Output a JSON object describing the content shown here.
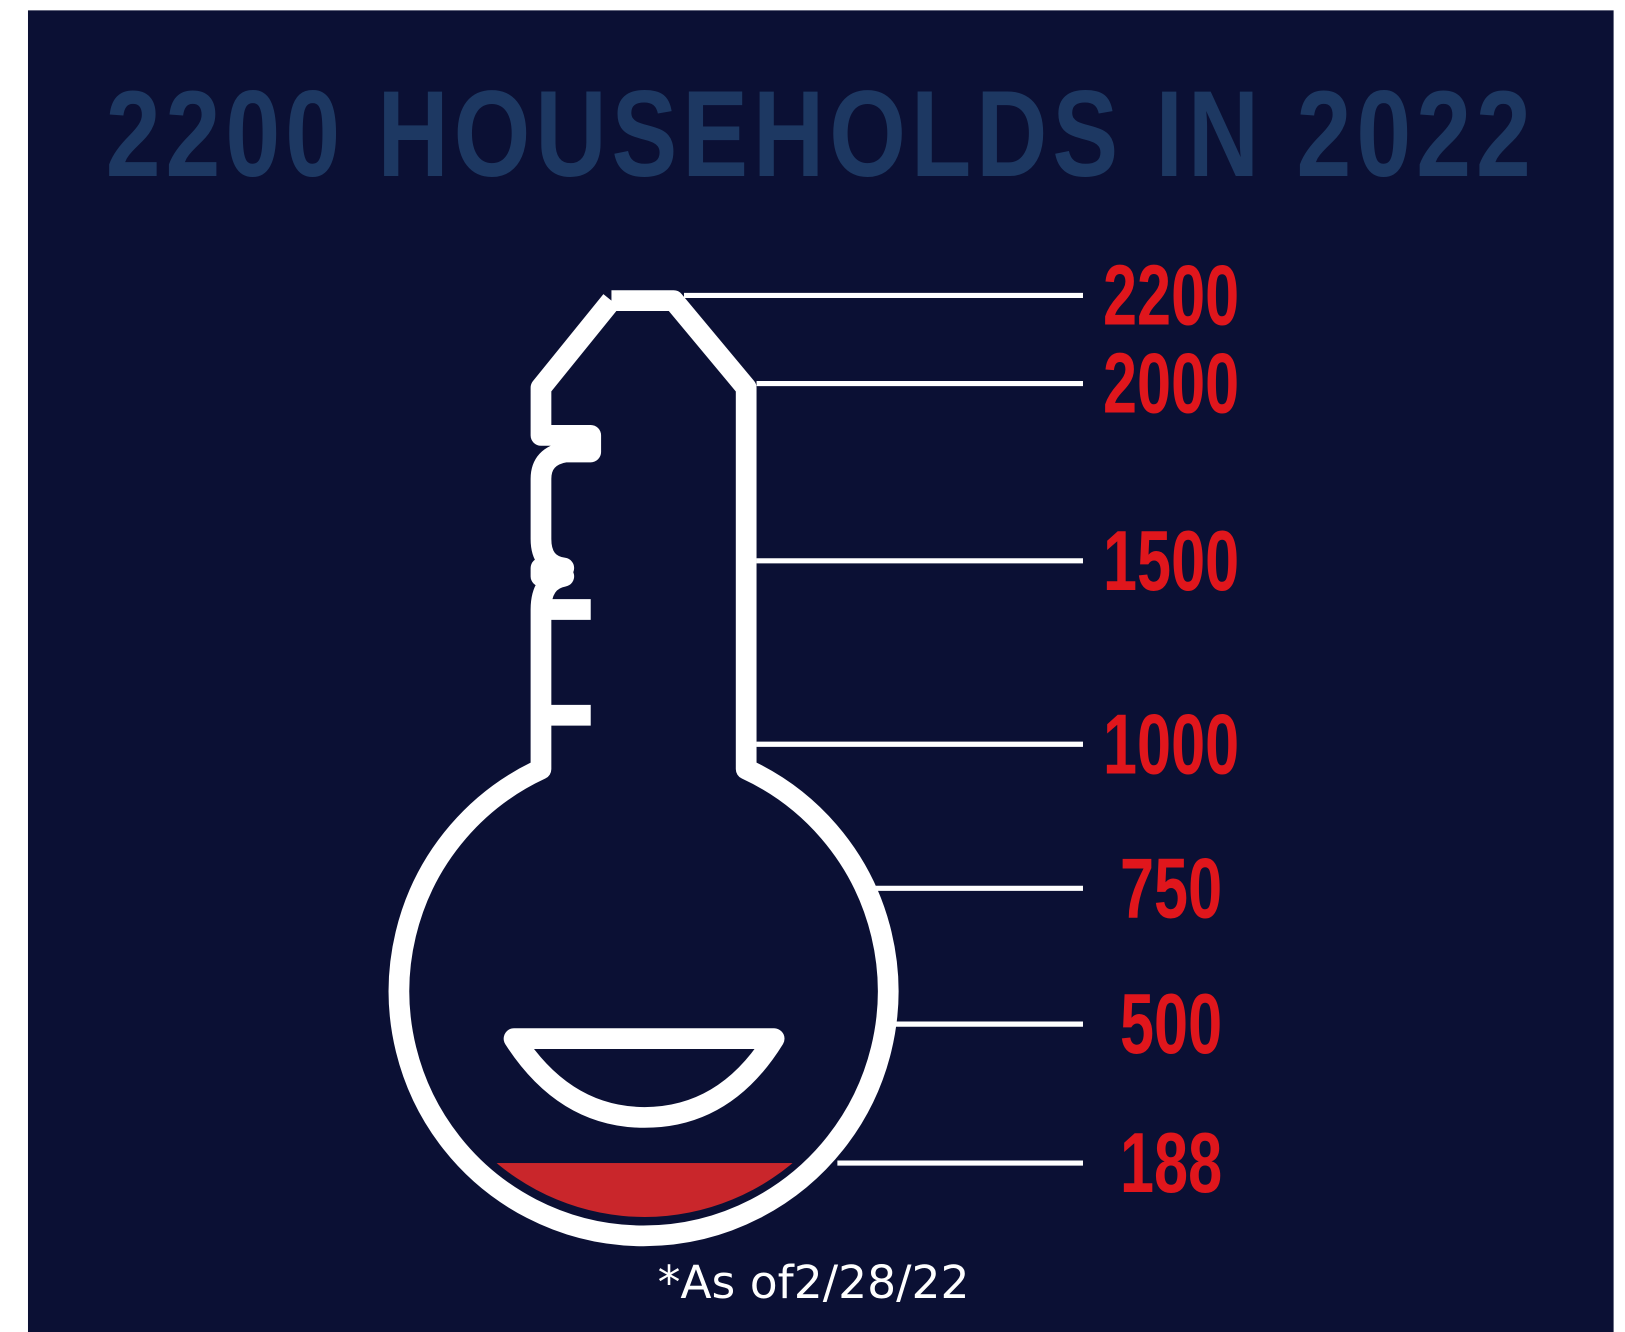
{
  "title": "2200 HOUSEHOLDS IN 2022",
  "scale_labels": [
    2200,
    2000,
    1500,
    1000,
    750,
    500,
    188
  ],
  "note": "*As of2/28/22"
}
